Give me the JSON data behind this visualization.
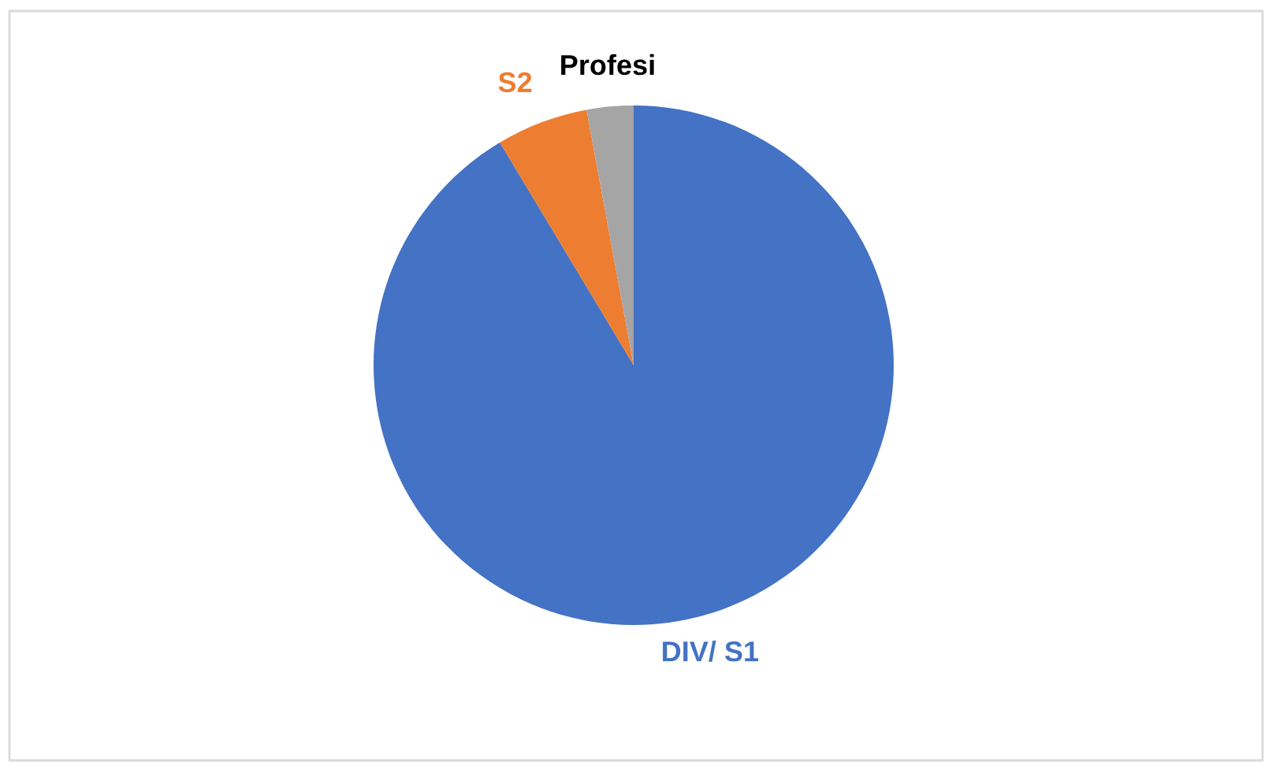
{
  "chart_data": {
    "type": "pie",
    "categories": [
      "DIV/ S1",
      "S2",
      "Profesi"
    ],
    "values": [
      91.4,
      5.7,
      2.9
    ],
    "colors": [
      "#4472c4",
      "#ed7d31",
      "#a5a5a5"
    ]
  }
}
